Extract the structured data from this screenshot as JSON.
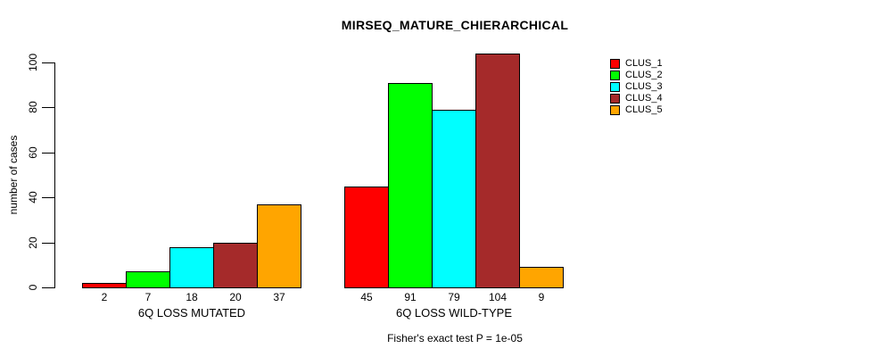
{
  "chart_data": {
    "type": "bar",
    "title": "MIRSEQ_MATURE_CHIERARCHICAL",
    "ylabel": "number of cases",
    "xlabel": "",
    "categories": [
      "6Q LOSS MUTATED",
      "6Q LOSS WILD-TYPE"
    ],
    "series": [
      {
        "name": "CLUS_1",
        "color": "#FF0000",
        "values": [
          2,
          45
        ]
      },
      {
        "name": "CLUS_2",
        "color": "#00FF00",
        "values": [
          7,
          91
        ]
      },
      {
        "name": "CLUS_3",
        "color": "#00FFFF",
        "values": [
          18,
          79
        ]
      },
      {
        "name": "CLUS_4",
        "color": "#A52A2A",
        "values": [
          20,
          104
        ]
      },
      {
        "name": "CLUS_5",
        "color": "#FFA500",
        "values": [
          37,
          9
        ]
      }
    ],
    "bar_value_labels": [
      [
        "2",
        "7",
        "18",
        "20",
        "37"
      ],
      [
        "45",
        "91",
        "79",
        "104",
        "9"
      ]
    ],
    "ylim": [
      0,
      100
    ],
    "yticks": [
      0,
      20,
      40,
      60,
      80,
      100
    ],
    "grid": "off",
    "legend_position": "right",
    "annotation": "Fisher's exact test P = 1e-05"
  },
  "colors": {
    "background": "#FFFFFF",
    "axis": "#000000",
    "text": "#000000"
  }
}
